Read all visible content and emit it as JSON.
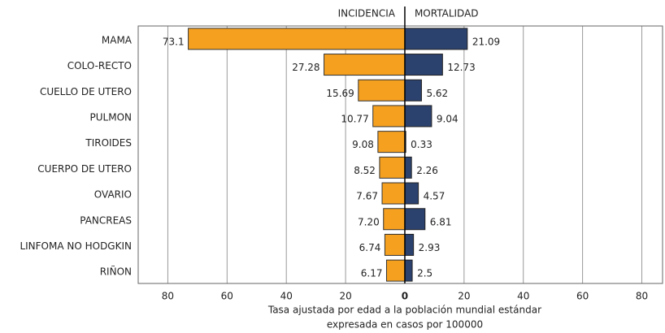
{
  "chart_data": {
    "type": "butterfly-bar",
    "categories": [
      "MAMA",
      "COLO-RECTO",
      "CUELLO DE UTERO",
      "PULMON",
      "TIROIDES",
      "CUERPO DE UTERO",
      "OVARIO",
      "PANCREAS",
      "LINFOMA NO HODGKIN",
      "RIÑON"
    ],
    "series": [
      {
        "name": "INCIDENCIA",
        "color": "#f5a01f",
        "values": [
          73.1,
          27.28,
          15.69,
          10.77,
          9.08,
          8.52,
          7.67,
          7.2,
          6.74,
          6.17
        ],
        "value_labels": [
          "73.1",
          "27.28",
          "15.69",
          "10.77",
          "9.08",
          "8.52",
          "7.67",
          "7.20",
          "6.74",
          "6.17"
        ]
      },
      {
        "name": "MORTALIDAD",
        "color": "#2b416e",
        "values": [
          21.09,
          12.73,
          5.62,
          9.04,
          0.33,
          2.26,
          4.57,
          6.81,
          2.93,
          2.5
        ]
      }
    ],
    "xlim": [
      -90,
      87
    ],
    "xticks": [
      {
        "value": -80,
        "label": "80"
      },
      {
        "value": -60,
        "label": "60"
      },
      {
        "value": -40,
        "label": "40"
      },
      {
        "value": -20,
        "label": "20"
      },
      0,
      20,
      40,
      60,
      80
    ],
    "xlabel": [
      "Tasa ajustada por edad a la población mundial estándar",
      "expresada en casos por 100000"
    ],
    "grid": true
  }
}
